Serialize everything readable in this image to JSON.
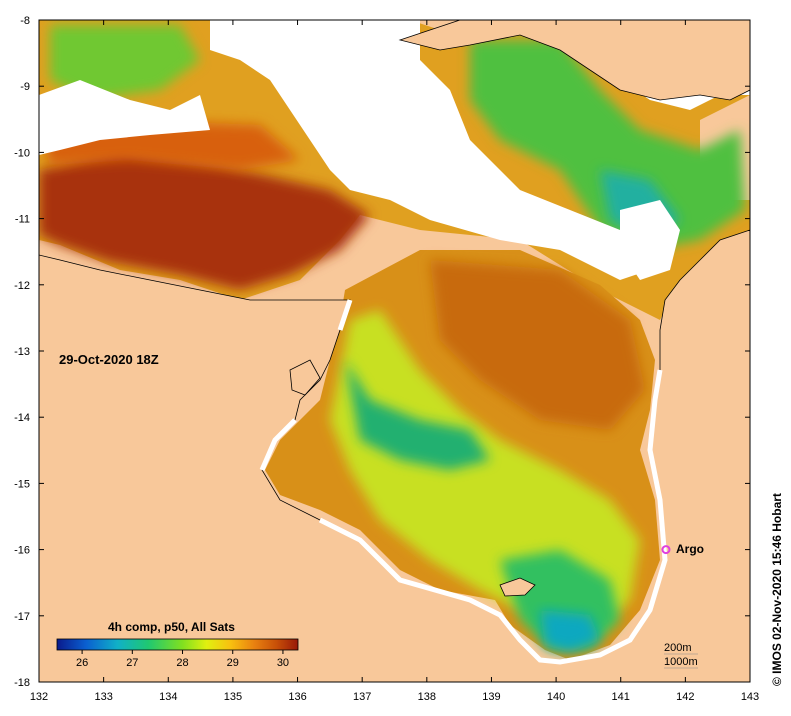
{
  "map": {
    "date_label": "29-Oct-2020 18Z",
    "argo_label": "Argo",
    "argo_position": {
      "lon": 141.7,
      "lat": -16.0
    },
    "credit": "© IMOS 02-Nov-2020 15:46 Hobart",
    "lon_ticks": [
      "132",
      "133",
      "134",
      "135",
      "136",
      "137",
      "138",
      "139",
      "140",
      "141",
      "142",
      "143"
    ],
    "lat_ticks": [
      "-8",
      "-9",
      "-10",
      "-11",
      "-12",
      "-13",
      "-14",
      "-15",
      "-16",
      "-17",
      "-18"
    ],
    "lon_range": [
      132,
      143
    ],
    "lat_range": [
      -18,
      -8
    ],
    "contours": [
      "200m",
      "1000m"
    ],
    "colors": {
      "land": "#f8c89a",
      "no_data": "#ffffff",
      "argo": "#e040e0"
    }
  },
  "colorbar": {
    "title": "4h comp, p50, All Sats",
    "ticks": [
      "26",
      "27",
      "28",
      "29",
      "30"
    ],
    "range": [
      25.5,
      30.3
    ],
    "colors": [
      "#0a1a8c",
      "#0a5fd0",
      "#10b0c8",
      "#20c870",
      "#80e020",
      "#e0f010",
      "#f8c010",
      "#e88010",
      "#c85008",
      "#981808"
    ]
  }
}
